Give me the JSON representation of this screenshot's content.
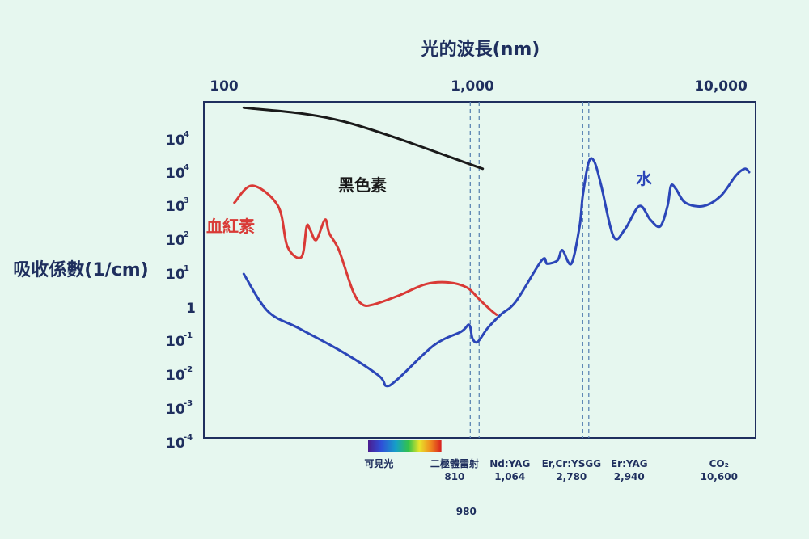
{
  "chart_data": {
    "type": "line",
    "title": "",
    "xlabel": "光的波長(nm)",
    "ylabel": "吸收係數(1/cm)",
    "x_scale": "log",
    "y_scale": "log",
    "x_ticks": [
      {
        "value": 100,
        "label": "100"
      },
      {
        "value": 1000,
        "label": "1,000"
      },
      {
        "value": 10000,
        "label": "10,000"
      }
    ],
    "y_ticks": [
      {
        "base": "10",
        "exp": "-4"
      },
      {
        "base": "10",
        "exp": "-3"
      },
      {
        "base": "10",
        "exp": "-2"
      },
      {
        "base": "10",
        "exp": "-1"
      },
      {
        "base": "1",
        "exp": ""
      },
      {
        "base": "10",
        "exp": "1"
      },
      {
        "base": "10",
        "exp": "2"
      },
      {
        "base": "10",
        "exp": "3"
      },
      {
        "base": "10",
        "exp": "4"
      },
      {
        "base": "10",
        "exp": "4"
      }
    ],
    "series": [
      {
        "name": "黑色素",
        "color": "#1a1a1a",
        "points": [
          [
            120,
            5.9
          ],
          [
            300,
            5.5
          ],
          [
            1100,
            4.1
          ]
        ]
      },
      {
        "name": "血紅素",
        "color": "#d93a36",
        "points": [
          [
            110,
            3.1
          ],
          [
            130,
            3.6
          ],
          [
            165,
            3.0
          ],
          [
            180,
            1.8
          ],
          [
            205,
            1.5
          ],
          [
            215,
            2.4
          ],
          [
            222,
            2.3
          ],
          [
            235,
            2.0
          ],
          [
            255,
            2.6
          ],
          [
            265,
            2.2
          ],
          [
            290,
            1.7
          ],
          [
            330,
            0.5
          ],
          [
            360,
            0.1
          ],
          [
            400,
            0.1
          ],
          [
            500,
            0.35
          ],
          [
            650,
            0.7
          ],
          [
            800,
            0.75
          ],
          [
            950,
            0.6
          ],
          [
            1050,
            0.3
          ],
          [
            1120,
            0.1
          ],
          [
            1200,
            -0.1
          ],
          [
            1250,
            -0.2
          ]
        ]
      },
      {
        "name": "水",
        "color": "#2b46b8",
        "points": [
          [
            120,
            1.0
          ],
          [
            150,
            -0.1
          ],
          [
            200,
            -0.6
          ],
          [
            300,
            -1.3
          ],
          [
            420,
            -2.0
          ],
          [
            450,
            -2.3
          ],
          [
            500,
            -2.1
          ],
          [
            700,
            -1.1
          ],
          [
            900,
            -0.7
          ],
          [
            970,
            -0.5
          ],
          [
            1000,
            -0.9
          ],
          [
            1050,
            -1.0
          ],
          [
            1150,
            -0.6
          ],
          [
            1300,
            -0.2
          ],
          [
            1500,
            0.2
          ],
          [
            1900,
            1.4
          ],
          [
            2000,
            1.3
          ],
          [
            2200,
            1.4
          ],
          [
            2300,
            1.7
          ],
          [
            2500,
            1.3
          ],
          [
            2700,
            2.4
          ],
          [
            2780,
            3.3
          ],
          [
            2940,
            4.3
          ],
          [
            3100,
            4.3
          ],
          [
            3300,
            3.6
          ],
          [
            3700,
            2.1
          ],
          [
            4100,
            2.3
          ],
          [
            4700,
            3.0
          ],
          [
            5200,
            2.6
          ],
          [
            5700,
            2.4
          ],
          [
            6100,
            3.0
          ],
          [
            6300,
            3.6
          ],
          [
            6600,
            3.5
          ],
          [
            7200,
            3.1
          ],
          [
            8500,
            3.0
          ],
          [
            10000,
            3.3
          ],
          [
            11500,
            3.9
          ],
          [
            12500,
            4.1
          ],
          [
            13000,
            4.0
          ]
        ]
      }
    ],
    "markers": [
      {
        "value": 980,
        "label": "980",
        "position": "below"
      },
      {
        "value": 1064,
        "label": "Nd:YAG\n1,064"
      },
      {
        "value": 2780,
        "label": "Er,Cr:YSGG\n2,780"
      },
      {
        "value": 2940,
        "label": "Er:YAG\n2,940"
      },
      {
        "value": 810,
        "label": "二極體雷射\n810"
      },
      {
        "value": 10600,
        "label": "CO₂\n10,600"
      }
    ],
    "visible_band_label": "可見光",
    "grid": false,
    "legend": "inline labels"
  }
}
